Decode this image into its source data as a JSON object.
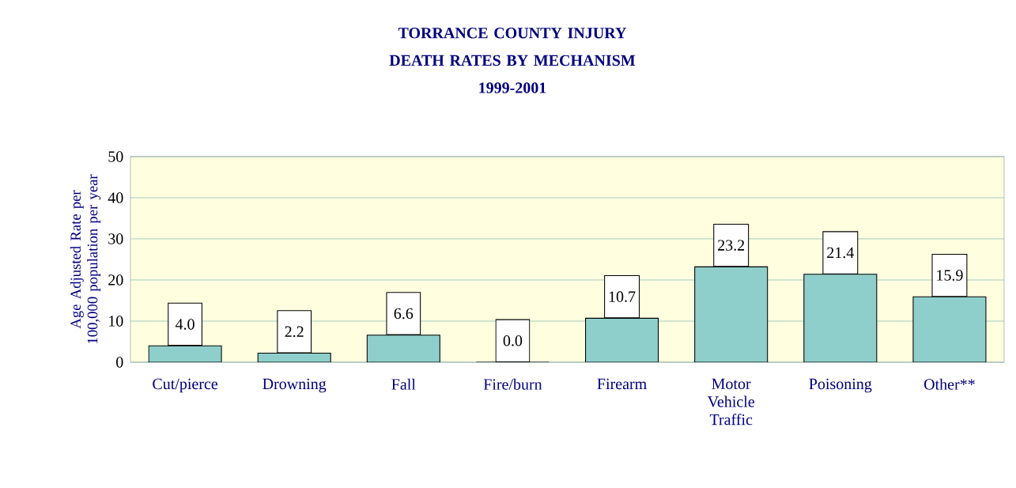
{
  "chart_data": {
    "type": "bar",
    "title": "TORRANCE COUNTY INJURY DEATH RATES BY MECHANISM",
    "subtitle": "1999-2001",
    "ylabel": "Age Adjusted Rate per 100,000 population per year",
    "categories": [
      "Cut/pierce",
      "Drowning",
      "Fall",
      "Fire/burn",
      "Firearm",
      "Motor Vehicle Traffic",
      "Poisoning",
      "Other**"
    ],
    "values": [
      4.0,
      2.2,
      6.6,
      0.0,
      10.7,
      23.2,
      21.4,
      15.9
    ],
    "value_labels": [
      "4.0",
      "2.2",
      "6.6",
      "0.0",
      "10.7",
      "23.2",
      "21.4",
      "15.9"
    ],
    "color": "#8fcfcb",
    "ylim": [
      0,
      50
    ],
    "yticks": [
      0,
      10,
      20,
      30,
      40,
      50
    ],
    "grid": "y"
  }
}
